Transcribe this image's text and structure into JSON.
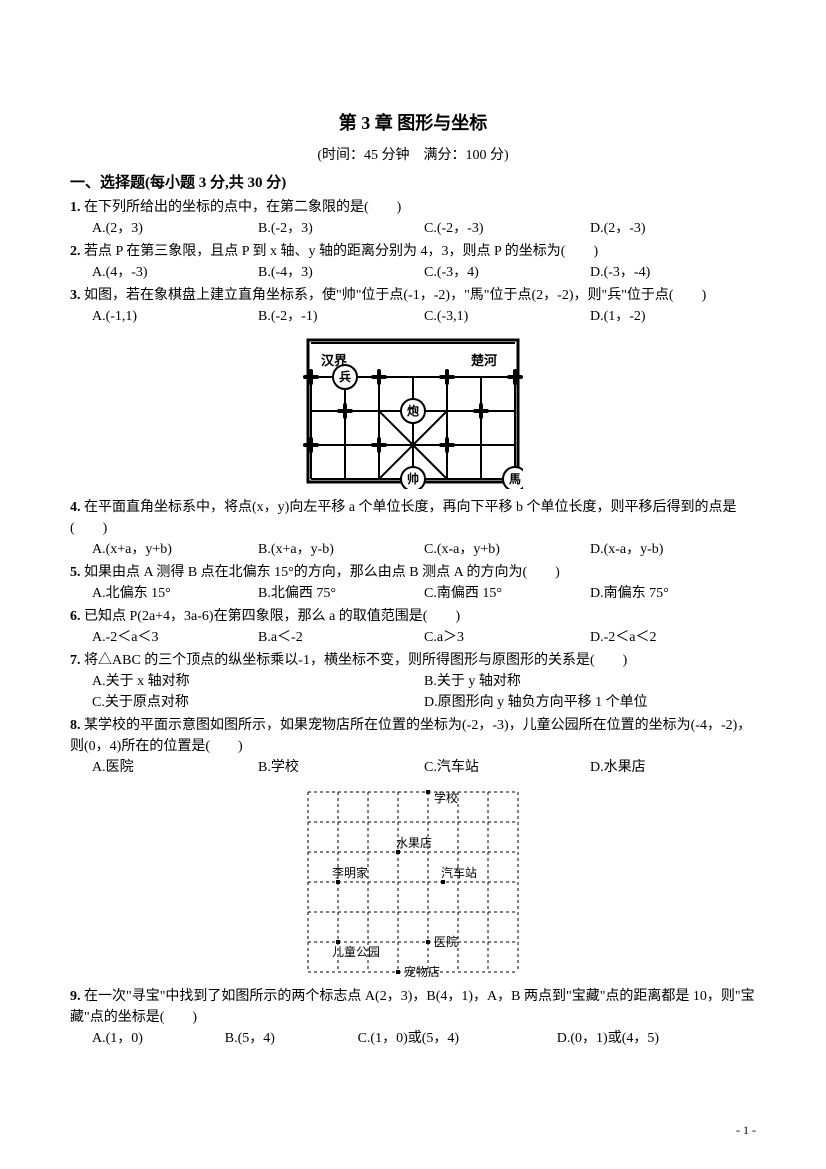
{
  "title": "第 3 章  图形与坐标",
  "subtitle": "(时间：45 分钟　满分：100 分)",
  "section1_head": "一、选择题(每小题 3 分,共 30 分)",
  "q1": {
    "num": "1.",
    "text": "在下列所给出的坐标的点中，在第二象限的是(　　)",
    "A": "A.(2，3)",
    "B": "B.(-2，3)",
    "C": "C.(-2，-3)",
    "D": "D.(2，-3)"
  },
  "q2": {
    "num": "2.",
    "text": "若点 P 在第三象限，且点 P 到 x 轴、y 轴的距离分别为 4，3，则点 P 的坐标为(　　)",
    "A": "A.(4，-3)",
    "B": "B.(-4，3)",
    "C": "C.(-3，4)",
    "D": "D.(-3，-4)"
  },
  "q3": {
    "num": "3.",
    "text": "如图，若在象棋盘上建立直角坐标系，使\"帅\"位于点(-1，-2)，\"馬\"位于点(2，-2)，则\"兵\"位于点(　　)",
    "A": "A.(-1,1)",
    "B": "B.(-2，-1)",
    "C": "C.(-3,1)",
    "D": "D.(1，-2)"
  },
  "chess": {
    "hanjie": "汉界",
    "chuhe": "楚河",
    "bing": "兵",
    "pao": "炮",
    "shuai": "帅",
    "ma": "馬",
    "border_color": "#000000",
    "bg": "#ffffff",
    "grid_cols": 6,
    "grid_rows": 4,
    "cell": 34
  },
  "q4": {
    "num": "4.",
    "text": "在平面直角坐标系中，将点(x，y)向左平移 a 个单位长度，再向下平移 b 个单位长度，则平移后得到的点是(　　)",
    "A": "A.(x+a，y+b)",
    "B": "B.(x+a，y-b)",
    "C": "C.(x-a，y+b)",
    "D": "D.(x-a，y-b)"
  },
  "q5": {
    "num": "5.",
    "text": "如果由点 A 测得 B 点在北偏东 15°的方向，那么由点 B 测点 A 的方向为(　　)",
    "A": "A.北偏东 15°",
    "B": "B.北偏西 75°",
    "C": "C.南偏西 15°",
    "D": "D.南偏东 75°"
  },
  "q6": {
    "num": "6.",
    "text": "已知点 P(2a+4，3a-6)在第四象限，那么 a 的取值范围是(　　)",
    "A": "A.-2＜a＜3",
    "B": "B.a＜-2",
    "C": "C.a＞3",
    "D": "D.-2＜a＜2"
  },
  "q7": {
    "num": "7.",
    "text": "将△ABC 的三个顶点的纵坐标乘以-1，横坐标不变，则所得图形与原图形的关系是(　　)",
    "A": "A.关于 x 轴对称",
    "B": "B.关于 y 轴对称",
    "C": "C.关于原点对称",
    "D": "D.原图形向 y 轴负方向平移 1 个单位"
  },
  "q8": {
    "num": "8.",
    "text": "某学校的平面示意图如图所示，如果宠物店所在位置的坐标为(-2，-3)，儿童公园所在位置的坐标为(-4，-2)，则(0，4)所在的位置是(　　)",
    "A": "A.医院",
    "B": "B.学校",
    "C": "C.汽车站",
    "D": "D.水果店"
  },
  "map": {
    "xuexiao": "学校",
    "shuiguodian": "水果店",
    "limingjia": "李明家",
    "qichezhan": "汽车站",
    "ertonggongyuan": "儿童公园",
    "yiyuan": "医院",
    "chongwudian": "宠物店",
    "cols": 7,
    "rows": 7,
    "cell": 30,
    "dash": "3,3",
    "stroke": "#000"
  },
  "q9": {
    "num": "9.",
    "text": "在一次\"寻宝\"中找到了如图所示的两个标志点 A(2，3)，B(4，1)，A，B 两点到\"宝藏\"点的距离都是 10，则\"宝藏\"点的坐标是(　　)",
    "A": "A.(1，0)",
    "B": "B.(5，4)",
    "C": "C.(1，0)或(5，4)",
    "D": "D.(0，1)或(4，5)"
  },
  "pageNum": "- 1 -"
}
